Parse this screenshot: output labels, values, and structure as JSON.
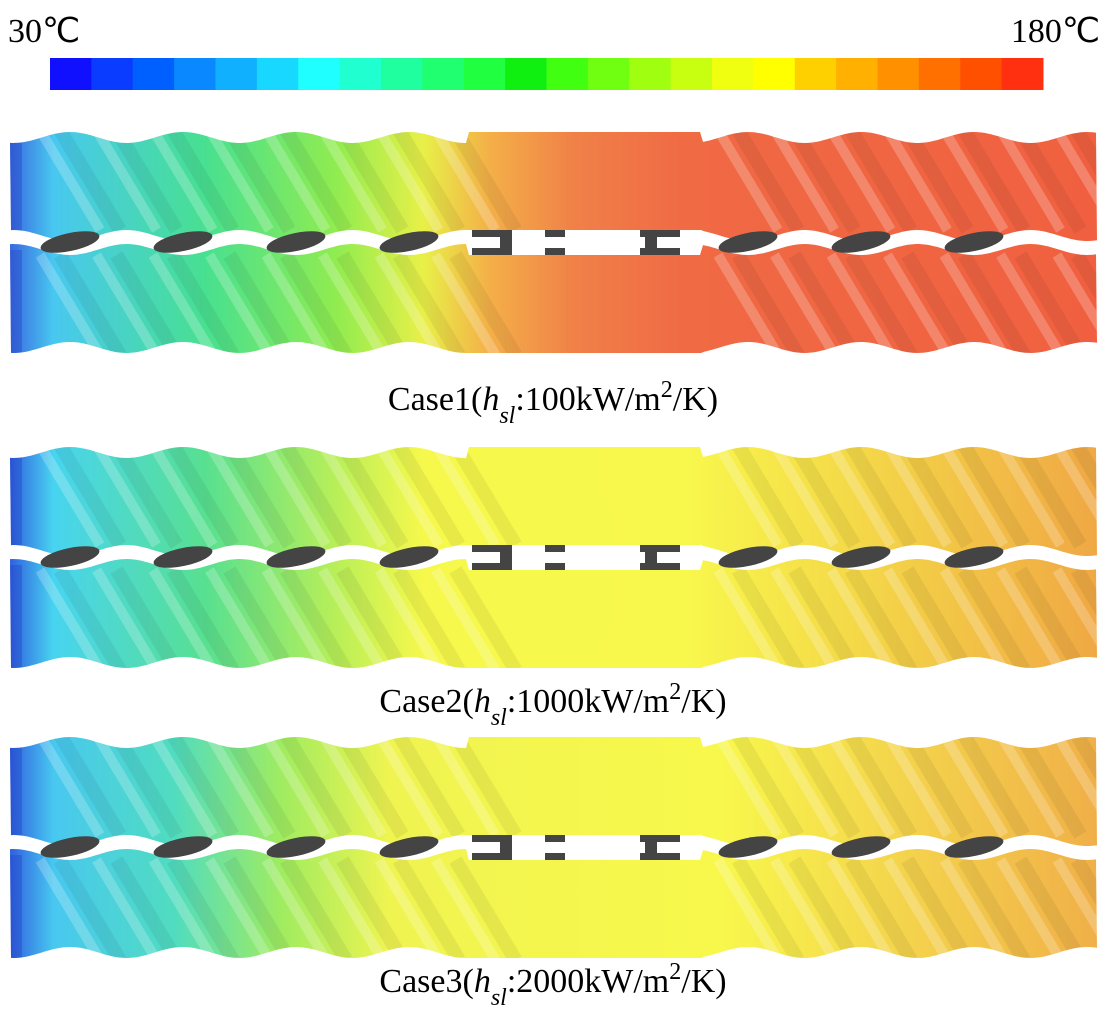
{
  "colorbar": {
    "min_label": "30℃",
    "max_label": "180℃",
    "colors": [
      "#1010ff",
      "#0a3cff",
      "#0060ff",
      "#0a88ff",
      "#10b0ff",
      "#18d8ff",
      "#20ffff",
      "#20ffd0",
      "#20ffa0",
      "#20ff70",
      "#20ff40",
      "#10f010",
      "#40ff10",
      "#70ff10",
      "#a0ff10",
      "#c8ff10",
      "#f0ff10",
      "#ffff00",
      "#ffd000",
      "#ffb000",
      "#ff9000",
      "#ff7000",
      "#ff5000",
      "#ff3010"
    ]
  },
  "panels": [
    {
      "caption": {
        "prefix": "Case1(",
        "symbol": "h",
        "subscript": "sl",
        "middle": ":100kW/m",
        "superscript": "2",
        "suffix": "/K)"
      }
    },
    {
      "caption": {
        "prefix": "Case2(",
        "symbol": "h",
        "subscript": "sl",
        "middle": ":1000kW/m",
        "superscript": "2",
        "suffix": "/K)"
      }
    },
    {
      "caption": {
        "prefix": "Case3(",
        "symbol": "h",
        "subscript": "sl",
        "middle": ":2000kW/m",
        "superscript": "2",
        "suffix": "/K)"
      }
    }
  ]
}
